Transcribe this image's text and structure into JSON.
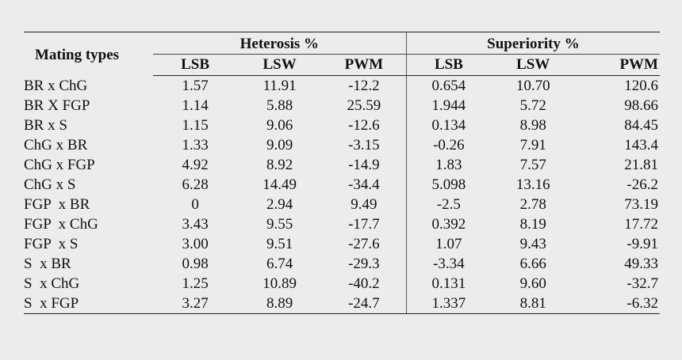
{
  "table": {
    "row_header": "Mating types",
    "groups": [
      "Heterosis %",
      "Superiority %"
    ],
    "columns": [
      "LSB",
      "LSW",
      "PWM",
      "LSB",
      "LSW",
      "PWM"
    ],
    "rows": [
      {
        "name": "BR x ChG",
        "values": [
          "1.57",
          "11.91",
          "-12.2",
          "0.654",
          "10.70",
          "120.6"
        ]
      },
      {
        "name": "BR X FGP",
        "values": [
          "1.14",
          "5.88",
          "25.59",
          "1.944",
          "5.72",
          "98.66"
        ]
      },
      {
        "name": "BR x S",
        "values": [
          "1.15",
          "9.06",
          "-12.6",
          "0.134",
          "8.98",
          "84.45"
        ]
      },
      {
        "name": "ChG x BR",
        "values": [
          "1.33",
          "9.09",
          "-3.15",
          "-0.26",
          "7.91",
          "143.4"
        ]
      },
      {
        "name": "ChG x FGP",
        "values": [
          "4.92",
          "8.92",
          "-14.9",
          "1.83",
          "7.57",
          "21.81"
        ]
      },
      {
        "name": "ChG x S",
        "values": [
          "6.28",
          "14.49",
          "-34.4",
          "5.098",
          "13.16",
          "-26.2"
        ]
      },
      {
        "name": "FGP  x BR",
        "values": [
          "0",
          "2.94",
          "9.49",
          "-2.5",
          "2.78",
          "73.19"
        ]
      },
      {
        "name": "FGP  x ChG",
        "values": [
          "3.43",
          "9.55",
          "-17.7",
          "0.392",
          "8.19",
          "17.72"
        ]
      },
      {
        "name": "FGP  x S",
        "values": [
          "3.00",
          "9.51",
          "-27.6",
          "1.07",
          "9.43",
          "-9.91"
        ]
      },
      {
        "name": "S  x BR",
        "values": [
          "0.98",
          "6.74",
          "-29.3",
          "-3.34",
          "6.66",
          "49.33"
        ]
      },
      {
        "name": "S  x ChG",
        "values": [
          "1.25",
          "10.89",
          "-40.2",
          "0.131",
          "9.60",
          "-32.7"
        ]
      },
      {
        "name": "S  x FGP",
        "values": [
          "3.27",
          "8.89",
          "-24.7",
          "1.337",
          "8.81",
          "-6.32"
        ]
      }
    ]
  }
}
